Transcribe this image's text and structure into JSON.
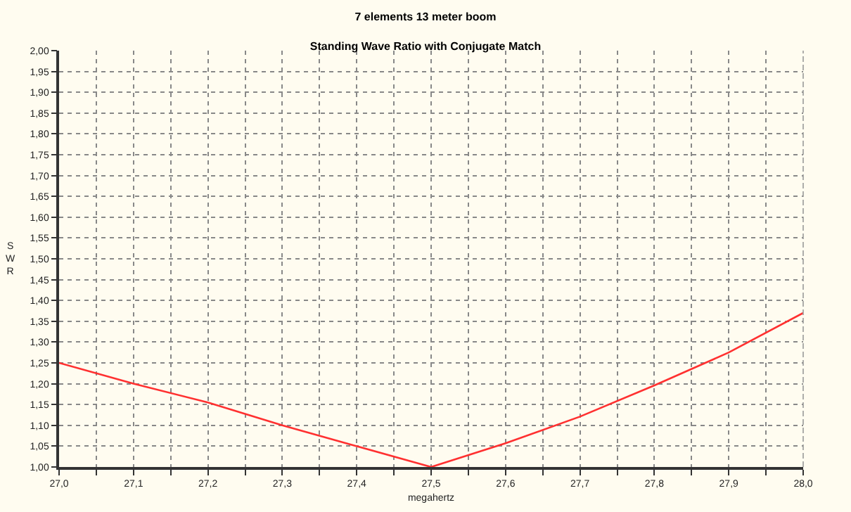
{
  "chart_data": {
    "type": "line",
    "title": "7 elements 13 meter boom",
    "subtitle": "Standing Wave Ratio with Conjugate Match",
    "xlabel": "megahertz",
    "ylabel": "SWR",
    "x": [
      27.0,
      27.1,
      27.2,
      27.3,
      27.4,
      27.5,
      27.6,
      27.7,
      27.8,
      27.9,
      28.0
    ],
    "series": [
      {
        "color": "#ff3030",
        "values": [
          1.25,
          1.2,
          1.155,
          1.1,
          1.05,
          1.0,
          1.057,
          1.121,
          1.196,
          1.275,
          1.37
        ]
      }
    ],
    "xlim": [
      27.0,
      28.0
    ],
    "xticks": [
      {
        "value": 27.0,
        "label": "27,0"
      },
      {
        "value": 27.05,
        "label": null
      },
      {
        "value": 27.1,
        "label": "27,1"
      },
      {
        "value": 27.15,
        "label": null
      },
      {
        "value": 27.2,
        "label": "27,2"
      },
      {
        "value": 27.25,
        "label": null
      },
      {
        "value": 27.3,
        "label": "27,3"
      },
      {
        "value": 27.35,
        "label": null
      },
      {
        "value": 27.4,
        "label": "27,4"
      },
      {
        "value": 27.45,
        "label": null
      },
      {
        "value": 27.5,
        "label": "27,5"
      },
      {
        "value": 27.55,
        "label": null
      },
      {
        "value": 27.6,
        "label": "27,6"
      },
      {
        "value": 27.65,
        "label": null
      },
      {
        "value": 27.7,
        "label": "27,7"
      },
      {
        "value": 27.75,
        "label": null
      },
      {
        "value": 27.8,
        "label": "27,8"
      },
      {
        "value": 27.85,
        "label": null
      },
      {
        "value": 27.9,
        "label": "27,9"
      },
      {
        "value": 27.95,
        "label": null
      },
      {
        "value": 28.0,
        "label": "28,0"
      }
    ],
    "ylim": [
      1.0,
      2.0
    ],
    "yticks": [
      {
        "value": 1.0,
        "label": "1,00"
      },
      {
        "value": 1.05,
        "label": "1,05"
      },
      {
        "value": 1.1,
        "label": "1,10"
      },
      {
        "value": 1.15,
        "label": "1,15"
      },
      {
        "value": 1.2,
        "label": "1,20"
      },
      {
        "value": 1.25,
        "label": "1,25"
      },
      {
        "value": 1.3,
        "label": "1,30"
      },
      {
        "value": 1.35,
        "label": "1,35"
      },
      {
        "value": 1.4,
        "label": "1,40"
      },
      {
        "value": 1.45,
        "label": "1,45"
      },
      {
        "value": 1.5,
        "label": "1,50"
      },
      {
        "value": 1.55,
        "label": "1,55"
      },
      {
        "value": 1.6,
        "label": "1,60"
      },
      {
        "value": 1.65,
        "label": "1,65"
      },
      {
        "value": 1.7,
        "label": "1,70"
      },
      {
        "value": 1.75,
        "label": "1,75"
      },
      {
        "value": 1.8,
        "label": "1,80"
      },
      {
        "value": 1.85,
        "label": "1,85"
      },
      {
        "value": 1.9,
        "label": "1,90"
      },
      {
        "value": 1.95,
        "label": "1,95"
      },
      {
        "value": 2.0,
        "label": "2,00"
      }
    ],
    "grid": true,
    "marker": "none",
    "line_style": "solid"
  }
}
